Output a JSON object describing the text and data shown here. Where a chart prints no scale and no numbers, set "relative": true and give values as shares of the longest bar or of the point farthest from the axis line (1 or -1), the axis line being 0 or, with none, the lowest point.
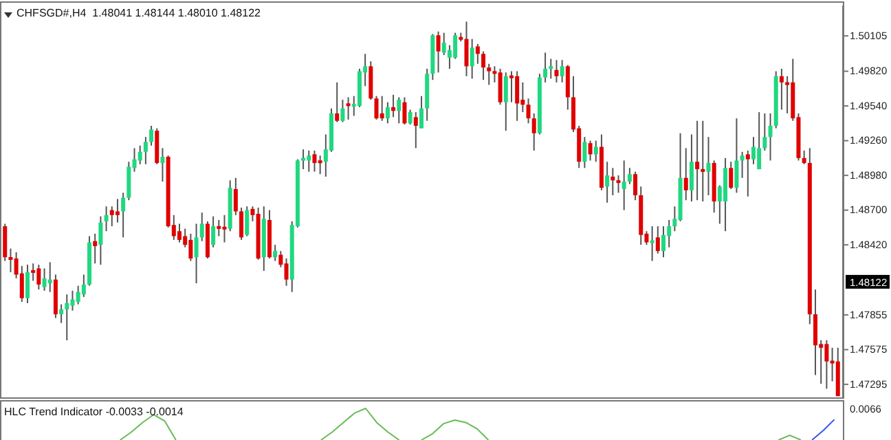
{
  "chart_data": [
    {
      "type": "candlestick",
      "title": "CHFSGD#,H4  1.48041 1.48144 1.48010 1.48122",
      "tick_labels": "y",
      "categories": [
        null,
        null,
        null,
        null,
        null,
        null,
        null,
        null,
        null,
        null,
        null,
        null,
        null,
        null,
        null,
        null,
        null,
        null,
        null,
        null,
        null,
        null,
        null,
        null,
        null,
        null,
        null,
        null,
        null,
        null,
        null,
        null,
        null,
        null,
        null,
        null,
        null,
        null,
        null,
        null,
        null,
        null,
        null,
        null,
        null,
        null,
        null,
        null,
        null,
        null,
        null,
        null,
        null,
        null,
        null,
        null,
        null,
        null,
        null,
        null,
        null,
        null,
        null,
        null,
        null,
        null,
        null,
        null,
        null,
        null,
        null,
        null,
        null,
        null,
        null,
        null,
        null,
        null,
        null,
        null,
        null,
        null,
        null,
        null,
        null,
        null,
        null,
        null,
        null,
        null,
        null,
        null,
        null,
        null,
        null,
        null,
        null,
        null,
        null,
        null,
        null,
        null,
        null,
        null,
        null,
        null,
        null,
        null,
        null,
        null,
        null,
        null,
        null,
        null,
        null,
        null,
        null,
        null,
        null,
        null,
        null,
        null,
        null,
        null,
        null,
        null,
        null,
        null,
        null,
        null,
        null,
        null,
        null,
        null,
        null,
        null,
        null,
        null,
        null,
        null,
        null,
        null,
        null,
        null,
        null,
        null,
        null,
        null,
        null
      ],
      "ylim": [
        1.4719,
        1.5035
      ],
      "yticks": [
        {
          "value": 1.47295,
          "label": "1.47295"
        },
        {
          "value": 1.47575,
          "label": "1.47575"
        },
        {
          "value": 1.47855,
          "label": "1.47855"
        },
        {
          "value": 1.4842,
          "label": "1.48420"
        },
        {
          "value": 1.487,
          "label": "1.48700"
        },
        {
          "value": 1.4898,
          "label": "1.48980"
        },
        {
          "value": 1.4926,
          "label": "1.49260"
        },
        {
          "value": 1.4954,
          "label": "1.49540"
        },
        {
          "value": 1.4982,
          "label": "1.49820"
        },
        {
          "value": 1.50105,
          "label": "1.50105"
        }
      ],
      "annotations": [
        {
          "text": "1.48122",
          "y": 1.48122
        }
      ],
      "ohlc": [
        [
          1.4857,
          1.4859,
          1.4829,
          1.4832
        ],
        [
          1.4832,
          1.4839,
          1.482,
          1.483
        ],
        [
          1.4831,
          1.4836,
          1.4815,
          1.4818
        ],
        [
          1.4819,
          1.4825,
          1.4796,
          1.4799
        ],
        [
          1.4799,
          1.4826,
          1.4795,
          1.482
        ],
        [
          1.4821,
          1.4827,
          1.4813,
          1.482
        ],
        [
          1.4823,
          1.4826,
          1.4806,
          1.481
        ],
        [
          1.4808,
          1.4823,
          1.4805,
          1.4815
        ],
        [
          1.4811,
          1.4828,
          1.4804,
          1.4814
        ],
        [
          1.4814,
          1.4818,
          1.4783,
          1.4786
        ],
        [
          1.4786,
          1.4794,
          1.4779,
          1.479
        ],
        [
          1.479,
          1.4802,
          1.4765,
          1.4795
        ],
        [
          1.4793,
          1.4805,
          1.4789,
          1.4798
        ],
        [
          1.4796,
          1.4809,
          1.4794,
          1.4804
        ],
        [
          1.4802,
          1.4818,
          1.48,
          1.481
        ],
        [
          1.481,
          1.4849,
          1.4809,
          1.4844
        ],
        [
          1.4845,
          1.4851,
          1.4827,
          1.4841
        ],
        [
          1.4842,
          1.4865,
          1.4826,
          1.486
        ],
        [
          1.4861,
          1.4873,
          1.4853,
          1.4866
        ],
        [
          1.487,
          1.4873,
          1.4857,
          1.4866
        ],
        [
          1.4869,
          1.4879,
          1.486,
          1.4866
        ],
        [
          1.4869,
          1.4884,
          1.4848,
          1.488
        ],
        [
          1.488,
          1.4909,
          1.4878,
          1.4905
        ],
        [
          1.4904,
          1.492,
          1.4901,
          1.4911
        ],
        [
          1.491,
          1.4922,
          1.4907,
          1.4917
        ],
        [
          1.4917,
          1.4929,
          1.4907,
          1.4925
        ],
        [
          1.4925,
          1.4938,
          1.4922,
          1.4935
        ],
        [
          1.4934,
          1.4936,
          1.4907,
          1.4908
        ],
        [
          1.4908,
          1.492,
          1.4893,
          1.4913
        ],
        [
          1.4913,
          1.4914,
          1.4856,
          1.4857
        ],
        [
          1.4858,
          1.4866,
          1.4846,
          1.4849
        ],
        [
          1.4853,
          1.4859,
          1.4844,
          1.4846
        ],
        [
          1.4849,
          1.4855,
          1.484,
          1.4842
        ],
        [
          1.4846,
          1.4851,
          1.4829,
          1.4831
        ],
        [
          1.4832,
          1.4859,
          1.4811,
          1.4848
        ],
        [
          1.4848,
          1.4868,
          1.4845,
          1.4859
        ],
        [
          1.4859,
          1.4861,
          1.4831,
          1.4832
        ],
        [
          1.4842,
          1.4865,
          1.484,
          1.4857
        ],
        [
          1.4857,
          1.4862,
          1.4849,
          1.4855
        ],
        [
          1.4856,
          1.4866,
          1.4844,
          1.4855
        ],
        [
          1.4855,
          1.4894,
          1.4853,
          1.4888
        ],
        [
          1.4887,
          1.4896,
          1.4866,
          1.4869
        ],
        [
          1.4869,
          1.4872,
          1.4846,
          1.4848
        ],
        [
          1.485,
          1.4873,
          1.4849,
          1.487
        ],
        [
          1.4871,
          1.4873,
          1.4861,
          1.4866
        ],
        [
          1.4867,
          1.4872,
          1.483,
          1.4831
        ],
        [
          1.4832,
          1.4873,
          1.4821,
          1.4863
        ],
        [
          1.4862,
          1.487,
          1.4831,
          1.4832
        ],
        [
          1.4832,
          1.4842,
          1.4829,
          1.4837
        ],
        [
          1.4834,
          1.4837,
          1.4824,
          1.4826
        ],
        [
          1.4827,
          1.4831,
          1.4809,
          1.4814
        ],
        [
          1.4814,
          1.4861,
          1.4804,
          1.4858
        ],
        [
          1.4857,
          1.4911,
          1.4856,
          1.491
        ],
        [
          1.491,
          1.4919,
          1.4903,
          1.4912
        ],
        [
          1.491,
          1.4918,
          1.4901,
          1.4914
        ],
        [
          1.4915,
          1.4918,
          1.4901,
          1.4908
        ],
        [
          1.491,
          1.4914,
          1.4899,
          1.4908
        ],
        [
          1.4909,
          1.4931,
          1.4897,
          1.4919
        ],
        [
          1.4918,
          1.4952,
          1.4917,
          1.4948
        ],
        [
          1.4948,
          1.4973,
          1.4941,
          1.4942
        ],
        [
          1.4942,
          1.4959,
          1.4941,
          1.4952
        ],
        [
          1.4956,
          1.4961,
          1.4943,
          1.4954
        ],
        [
          1.4954,
          1.4962,
          1.4946,
          1.4955
        ],
        [
          1.4954,
          1.4984,
          1.4953,
          1.4982
        ],
        [
          1.4981,
          1.4996,
          1.497,
          1.4986
        ],
        [
          1.4986,
          1.499,
          1.4959,
          1.496
        ],
        [
          1.496,
          1.4962,
          1.4943,
          1.4944
        ],
        [
          1.4948,
          1.4962,
          1.4942,
          1.4944
        ],
        [
          1.4944,
          1.4957,
          1.494,
          1.4953
        ],
        [
          1.4953,
          1.4963,
          1.4945,
          1.495
        ],
        [
          1.495,
          1.4961,
          1.494,
          1.4959
        ],
        [
          1.4957,
          1.4961,
          1.4939,
          1.494
        ],
        [
          1.494,
          1.4951,
          1.4939,
          1.4949
        ],
        [
          1.4945,
          1.4949,
          1.492,
          1.4938
        ],
        [
          1.4936,
          1.4962,
          1.4936,
          1.4952
        ],
        [
          1.4952,
          1.4984,
          1.4942,
          1.498
        ],
        [
          1.498,
          1.5012,
          1.4975,
          1.5011
        ],
        [
          1.5011,
          1.5014,
          1.4981,
          1.4998
        ],
        [
          1.4997,
          1.5013,
          1.4995,
          1.5005
        ],
        [
          1.4993,
          1.5003,
          1.4984,
          1.4999
        ],
        [
          1.4993,
          1.5013,
          1.4992,
          1.5011
        ],
        [
          1.5009,
          1.5013,
          1.5006,
          1.5008
        ],
        [
          1.5008,
          1.5022,
          1.4978,
          1.4986
        ],
        [
          1.4986,
          1.5008,
          1.4976,
          1.5001
        ],
        [
          1.5002,
          1.5004,
          1.4988,
          1.4996
        ],
        [
          1.4996,
          1.4998,
          1.4975,
          1.4985
        ],
        [
          1.4985,
          1.4988,
          1.4971,
          1.4982
        ],
        [
          1.4982,
          1.4986,
          1.4973,
          1.498
        ],
        [
          1.4981,
          1.4984,
          1.4955,
          1.4957
        ],
        [
          1.4957,
          1.4981,
          1.4934,
          1.4978
        ],
        [
          1.4978,
          1.4982,
          1.4957,
          1.4977
        ],
        [
          1.4978,
          1.4982,
          1.4942,
          1.4956
        ],
        [
          1.4959,
          1.4973,
          1.4949,
          1.4955
        ],
        [
          1.4955,
          1.496,
          1.494,
          1.4944
        ],
        [
          1.4944,
          1.4948,
          1.4918,
          1.4932
        ],
        [
          1.4932,
          1.498,
          1.4931,
          1.4977
        ],
        [
          1.4977,
          1.4997,
          1.4973,
          1.4984
        ],
        [
          1.4984,
          1.4992,
          1.4976,
          1.4986
        ],
        [
          1.4983,
          1.4991,
          1.4973,
          1.4978
        ],
        [
          1.4978,
          1.4991,
          1.4973,
          1.4986
        ],
        [
          1.4986,
          1.4987,
          1.4951,
          1.4961
        ],
        [
          1.4961,
          1.4978,
          1.4933,
          1.4935
        ],
        [
          1.4936,
          1.4938,
          1.4904,
          1.4909
        ],
        [
          1.4909,
          1.4929,
          1.4904,
          1.4925
        ],
        [
          1.4924,
          1.4926,
          1.491,
          1.4915
        ],
        [
          1.4915,
          1.4926,
          1.4909,
          1.4921
        ],
        [
          1.4921,
          1.4931,
          1.4886,
          1.4888
        ],
        [
          1.4889,
          1.4909,
          1.4876,
          1.4898
        ],
        [
          1.4897,
          1.4904,
          1.4882,
          1.4894
        ],
        [
          1.4894,
          1.4898,
          1.4884,
          1.4892
        ],
        [
          1.4887,
          1.491,
          1.487,
          1.4893
        ],
        [
          1.4893,
          1.4904,
          1.4891,
          1.4899
        ],
        [
          1.4899,
          1.4901,
          1.4878,
          1.4882
        ],
        [
          1.4882,
          1.4889,
          1.4842,
          1.485
        ],
        [
          1.4851,
          1.4853,
          1.4842,
          1.4844
        ],
        [
          1.4844,
          1.4857,
          1.4829,
          1.4845
        ],
        [
          1.4848,
          1.4857,
          1.4835,
          1.4837
        ],
        [
          1.4837,
          1.4857,
          1.4832,
          1.485
        ],
        [
          1.4849,
          1.4862,
          1.484,
          1.4857
        ],
        [
          1.4857,
          1.4873,
          1.4853,
          1.4863
        ],
        [
          1.4862,
          1.4932,
          1.4861,
          1.4896
        ],
        [
          1.4896,
          1.492,
          1.4878,
          1.4886
        ],
        [
          1.4886,
          1.4931,
          1.4877,
          1.4909
        ],
        [
          1.4909,
          1.4942,
          1.4878,
          1.4903
        ],
        [
          1.4903,
          1.4942,
          1.4877,
          1.4901
        ],
        [
          1.4901,
          1.4929,
          1.4882,
          1.4908
        ],
        [
          1.4908,
          1.491,
          1.4868,
          1.4877
        ],
        [
          1.4877,
          1.489,
          1.4859,
          1.4889
        ],
        [
          1.4877,
          1.4912,
          1.4853,
          1.4904
        ],
        [
          1.4904,
          1.4909,
          1.4887,
          1.4888
        ],
        [
          1.4888,
          1.4944,
          1.4884,
          1.491
        ],
        [
          1.491,
          1.4917,
          1.4896,
          1.4914
        ],
        [
          1.4915,
          1.4918,
          1.4881,
          1.4911
        ],
        [
          1.4911,
          1.4929,
          1.4907,
          1.4921
        ],
        [
          1.4903,
          1.4949,
          1.4903,
          1.492
        ],
        [
          1.492,
          1.4948,
          1.4918,
          1.4929
        ],
        [
          1.4929,
          1.4948,
          1.491,
          1.4938
        ],
        [
          1.4938,
          1.4982,
          1.4936,
          1.4978
        ],
        [
          1.4978,
          1.4984,
          1.4951,
          1.4973
        ],
        [
          1.4973,
          1.4978,
          1.4948,
          1.4971
        ],
        [
          1.4973,
          1.4992,
          1.4942,
          1.4944
        ],
        [
          1.4945,
          1.4948,
          1.491,
          1.4912
        ],
        [
          1.4912,
          1.4918,
          1.4907,
          1.4908
        ],
        [
          1.4908,
          1.492,
          1.4778,
          1.4786
        ],
        [
          1.4786,
          1.4806,
          1.4737,
          1.4761
        ],
        [
          1.4762,
          1.4765,
          1.473,
          1.4759
        ],
        [
          1.4762,
          1.4765,
          1.4726,
          1.4748
        ],
        [
          1.4748,
          1.4759,
          1.4732,
          1.4747
        ],
        [
          1.4748,
          1.4759,
          1.472,
          1.472
        ]
      ],
      "colors": [
        "#e00000",
        "#e00000",
        "#e00000",
        "#e00000",
        "#20d880",
        "#e00000",
        "#e00000",
        "#20d880",
        "#20d880",
        "#e00000",
        "#20d880",
        "#20d880",
        "#20d880",
        "#20d880",
        "#20d880",
        "#20d880",
        "#e00000",
        "#20d880",
        "#20d880",
        "#e00000",
        "#e00000",
        "#20d880",
        "#20d880",
        "#20d880",
        "#20d880",
        "#20d880",
        "#20d880",
        "#e00000",
        "#20d880",
        "#e00000",
        "#e00000",
        "#e00000",
        "#e00000",
        "#e00000",
        "#20d880",
        "#20d880",
        "#e00000",
        "#20d880",
        "#e00000",
        "#e00000",
        "#20d880",
        "#e00000",
        "#e00000",
        "#20d880",
        "#e00000",
        "#e00000",
        "#20d880",
        "#e00000",
        "#20d880",
        "#e00000",
        "#e00000",
        "#20d880",
        "#20d880",
        "#20d880",
        "#20d880",
        "#e00000",
        "#e00000",
        "#20d880",
        "#20d880",
        "#e00000",
        "#20d880",
        "#e00000",
        "#20d880",
        "#20d880",
        "#20d880",
        "#e00000",
        "#e00000",
        "#e00000",
        "#20d880",
        "#e00000",
        "#20d880",
        "#e00000",
        "#20d880",
        "#e00000",
        "#20d880",
        "#20d880",
        "#20d880",
        "#e00000",
        "#20d880",
        "#20d880",
        "#20d880",
        "#e00000",
        "#e00000",
        "#20d880",
        "#e00000",
        "#e00000",
        "#e00000",
        "#e00000",
        "#e00000",
        "#20d880",
        "#e00000",
        "#e00000",
        "#e00000",
        "#e00000",
        "#e00000",
        "#20d880",
        "#20d880",
        "#20d880",
        "#e00000",
        "#20d880",
        "#e00000",
        "#e00000",
        "#e00000",
        "#20d880",
        "#e00000",
        "#20d880",
        "#e00000",
        "#20d880",
        "#e00000",
        "#e00000",
        "#20d880",
        "#20d880",
        "#e00000",
        "#e00000",
        "#e00000",
        "#20d880",
        "#e00000",
        "#20d880",
        "#20d880",
        "#20d880",
        "#20d880",
        "#e00000",
        "#20d880",
        "#e00000",
        "#e00000",
        "#20d880",
        "#e00000",
        "#20d880",
        "#20d880",
        "#e00000",
        "#20d880",
        "#20d880",
        "#e00000",
        "#20d880",
        "#20d880",
        "#20d880",
        "#20d880",
        "#20d880",
        "#e00000",
        "#e00000",
        "#e00000",
        "#e00000",
        "#e00000",
        "#e00000",
        "#e00000",
        "#e00000",
        "#e00000",
        "#e00000",
        "#e00000"
      ]
    },
    {
      "type": "line",
      "title": "HLC Trend Indicator -0.0033 -0.0014",
      "relative": true,
      "tick_labels": false,
      "annotations": [
        "0.0066"
      ],
      "categories": [
        null,
        null,
        null,
        null,
        null,
        null,
        null,
        null,
        null,
        null,
        null,
        null,
        null,
        null,
        null,
        null,
        null,
        null,
        null,
        null,
        null,
        null,
        null,
        null,
        null,
        null,
        null,
        null,
        null,
        null,
        null,
        null,
        null,
        null,
        null,
        null,
        null,
        null,
        null,
        null,
        null,
        null,
        null,
        null,
        null,
        null,
        null,
        null,
        null,
        null,
        null,
        null,
        null,
        null,
        null,
        null,
        null,
        null,
        null,
        null,
        null,
        null,
        null,
        null,
        null,
        null,
        null,
        null,
        null,
        null,
        null,
        null,
        null,
        null,
        null
      ],
      "series": [
        {
          "color": "#66bb55",
          "values": [
            null,
            null,
            null,
            null,
            null,
            null,
            null,
            null,
            null,
            null,
            0,
            0.25,
            0.55,
            0.8,
            0.6,
            0,
            null,
            null,
            null,
            null,
            null,
            null,
            null,
            null,
            null,
            null,
            null,
            null,
            null,
            null,
            null,
            null,
            null,
            null,
            null,
            null,
            null,
            null,
            null,
            null,
            null,
            null,
            null,
            null,
            null,
            null,
            null,
            null,
            null,
            null,
            null,
            null,
            null,
            null,
            null,
            null,
            null,
            null,
            null,
            null,
            null,
            null,
            null,
            null,
            null,
            null,
            null,
            null,
            null,
            null,
            null,
            null,
            null,
            null,
            null
          ]
        },
        {
          "color": "#66bb55",
          "values": [
            null,
            null,
            null,
            null,
            null,
            null,
            null,
            null,
            null,
            null,
            null,
            null,
            null,
            null,
            null,
            null,
            null,
            null,
            null,
            null,
            null,
            null,
            null,
            null,
            null,
            null,
            null,
            null,
            0,
            0.25,
            0.55,
            0.85,
            1,
            0.55,
            0.25,
            0,
            null,
            null,
            null,
            null,
            null,
            null,
            null,
            null,
            null,
            null,
            null,
            null,
            null,
            null,
            null,
            null,
            null,
            null,
            null,
            null,
            null,
            null,
            null,
            null,
            null,
            null,
            null,
            null,
            null,
            null,
            null,
            null,
            null,
            null,
            null,
            null,
            null,
            null,
            null
          ]
        },
        {
          "color": "#66bb55",
          "values": [
            null,
            null,
            null,
            null,
            null,
            null,
            null,
            null,
            null,
            null,
            null,
            null,
            null,
            null,
            null,
            null,
            null,
            null,
            null,
            null,
            null,
            null,
            null,
            null,
            null,
            null,
            null,
            null,
            null,
            null,
            null,
            null,
            null,
            null,
            null,
            null,
            null,
            0,
            0.2,
            0.52,
            0.63,
            0.55,
            0.35,
            0,
            null,
            null,
            null,
            null,
            null,
            null,
            null,
            null,
            null,
            null,
            null,
            null,
            null,
            null,
            null,
            null,
            null,
            null,
            null,
            null,
            null,
            null,
            null,
            null,
            null,
            null,
            null,
            null,
            null,
            null,
            null
          ]
        },
        {
          "color": "#66bb55",
          "values": [
            null,
            null,
            null,
            null,
            null,
            null,
            null,
            null,
            null,
            null,
            null,
            null,
            null,
            null,
            null,
            null,
            null,
            null,
            null,
            null,
            null,
            null,
            null,
            null,
            null,
            null,
            null,
            null,
            null,
            null,
            null,
            null,
            null,
            null,
            null,
            null,
            null,
            null,
            null,
            null,
            null,
            null,
            null,
            null,
            null,
            null,
            null,
            null,
            null,
            null,
            null,
            null,
            null,
            null,
            null,
            null,
            null,
            null,
            null,
            null,
            null,
            null,
            null,
            null,
            null,
            null,
            null,
            null,
            null,
            0,
            0.15,
            0,
            null,
            null,
            null
          ]
        },
        {
          "color": "#3355ee",
          "values": [
            null,
            null,
            null,
            null,
            null,
            null,
            null,
            null,
            null,
            null,
            null,
            null,
            null,
            null,
            null,
            null,
            null,
            null,
            null,
            null,
            null,
            null,
            null,
            null,
            null,
            null,
            null,
            null,
            null,
            null,
            null,
            null,
            null,
            null,
            null,
            null,
            null,
            null,
            null,
            null,
            null,
            null,
            null,
            null,
            null,
            null,
            null,
            null,
            null,
            null,
            null,
            null,
            null,
            null,
            null,
            null,
            null,
            null,
            null,
            null,
            null,
            null,
            null,
            null,
            null,
            null,
            null,
            null,
            null,
            null,
            null,
            null,
            0,
            0.3,
            0.65
          ]
        }
      ]
    }
  ]
}
